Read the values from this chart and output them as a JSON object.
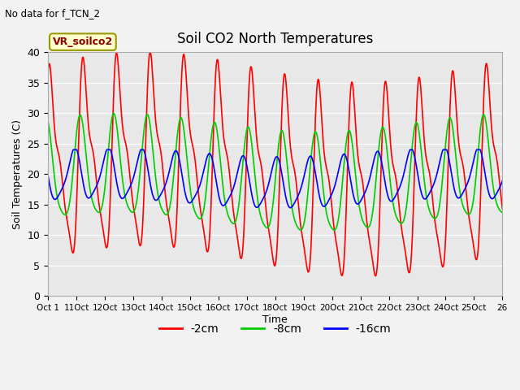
{
  "title": "Soil CO2 North Temperatures",
  "subtitle": "No data for f_TCN_2",
  "ylabel": "Soil Temperatures (C)",
  "xlabel": "Time",
  "legend_label": "VR_soilco2",
  "ylim": [
    0,
    40
  ],
  "background_color": "#e8e8e8",
  "fig_background": "#f2f2f2",
  "red_color": "#ff0000",
  "green_color": "#00cc00",
  "blue_color": "#0000ff",
  "series_labels": [
    "-2cm",
    "-8cm",
    "-16cm"
  ],
  "xtick_labels": [
    "Oct 1",
    "11Oct",
    "12Oct",
    "13Oct",
    "14Oct",
    "15Oct",
    "16Oct",
    "17Oct",
    "18Oct",
    "19Oct",
    "20Oct",
    "21Oct",
    "22Oct",
    "23Oct",
    "24Oct",
    "25Oct",
    "26"
  ],
  "title_fontsize": 12,
  "axis_fontsize": 9,
  "legend_fontsize": 10
}
